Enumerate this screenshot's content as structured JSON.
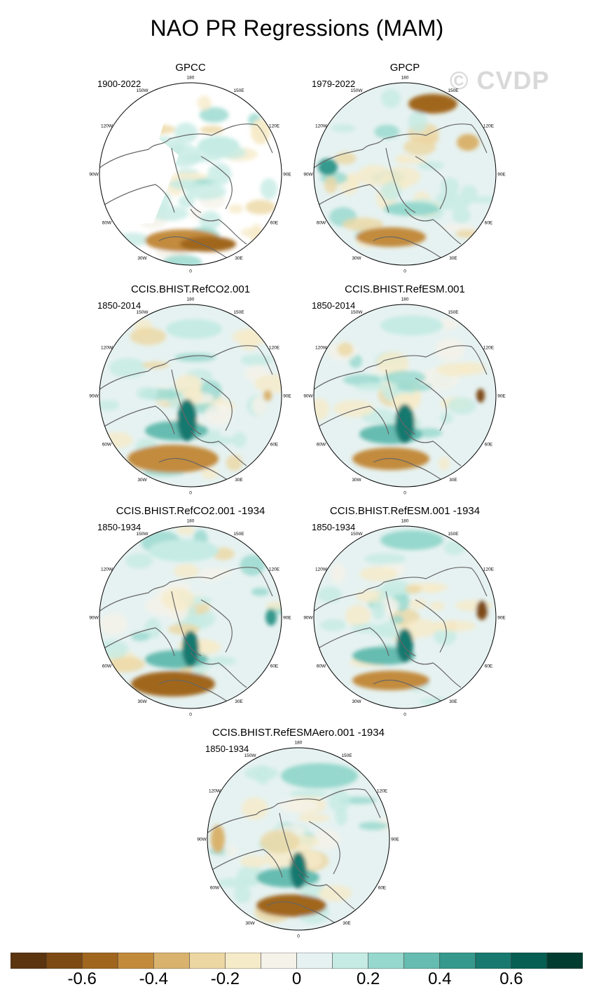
{
  "title": "NAO PR Regressions (MAM)",
  "watermark": "© CVDP",
  "panels": [
    {
      "name": "GPCC",
      "period": "1900-2022",
      "pos": [
        142,
        88
      ]
    },
    {
      "name": "GPCP",
      "period": "1979-2022",
      "pos": [
        448,
        88
      ]
    },
    {
      "name": "CCIS.BHIST.RefCO2.001",
      "period": "1850-2014",
      "pos": [
        142,
        404
      ]
    },
    {
      "name": "CCIS.BHIST.RefESM.001",
      "period": "1850-2014",
      "pos": [
        448,
        404
      ]
    },
    {
      "name": "CCIS.BHIST.RefCO2.001 -1934",
      "period": "1850-1934",
      "pos": [
        142,
        720
      ]
    },
    {
      "name": "CCIS.BHIST.RefESM.001 -1934",
      "period": "1850-1934",
      "pos": [
        448,
        720
      ]
    },
    {
      "name": "CCIS.BHIST.RefESMAero.001 -1934",
      "period": "1850-1934",
      "pos": [
        296,
        1036
      ]
    }
  ],
  "longitude_labels": [
    "180",
    "150E",
    "120E",
    "90E",
    "60E",
    "30E",
    "0",
    "30W",
    "60W",
    "90W",
    "120W",
    "150W"
  ],
  "colorbar": {
    "colors": [
      "#5b3410",
      "#7d4a14",
      "#a0661e",
      "#c28b3c",
      "#d9b36e",
      "#ecd7a3",
      "#f6ebc9",
      "#f5f2ea",
      "#e6f2f1",
      "#c5ebe4",
      "#96d8cd",
      "#66bcb0",
      "#36998d",
      "#17796f",
      "#075e52",
      "#003c30"
    ],
    "ticks": [
      "-0.6",
      "-0.4",
      "-0.2",
      "0",
      "0.2",
      "0.4",
      "0.6"
    ]
  }
}
